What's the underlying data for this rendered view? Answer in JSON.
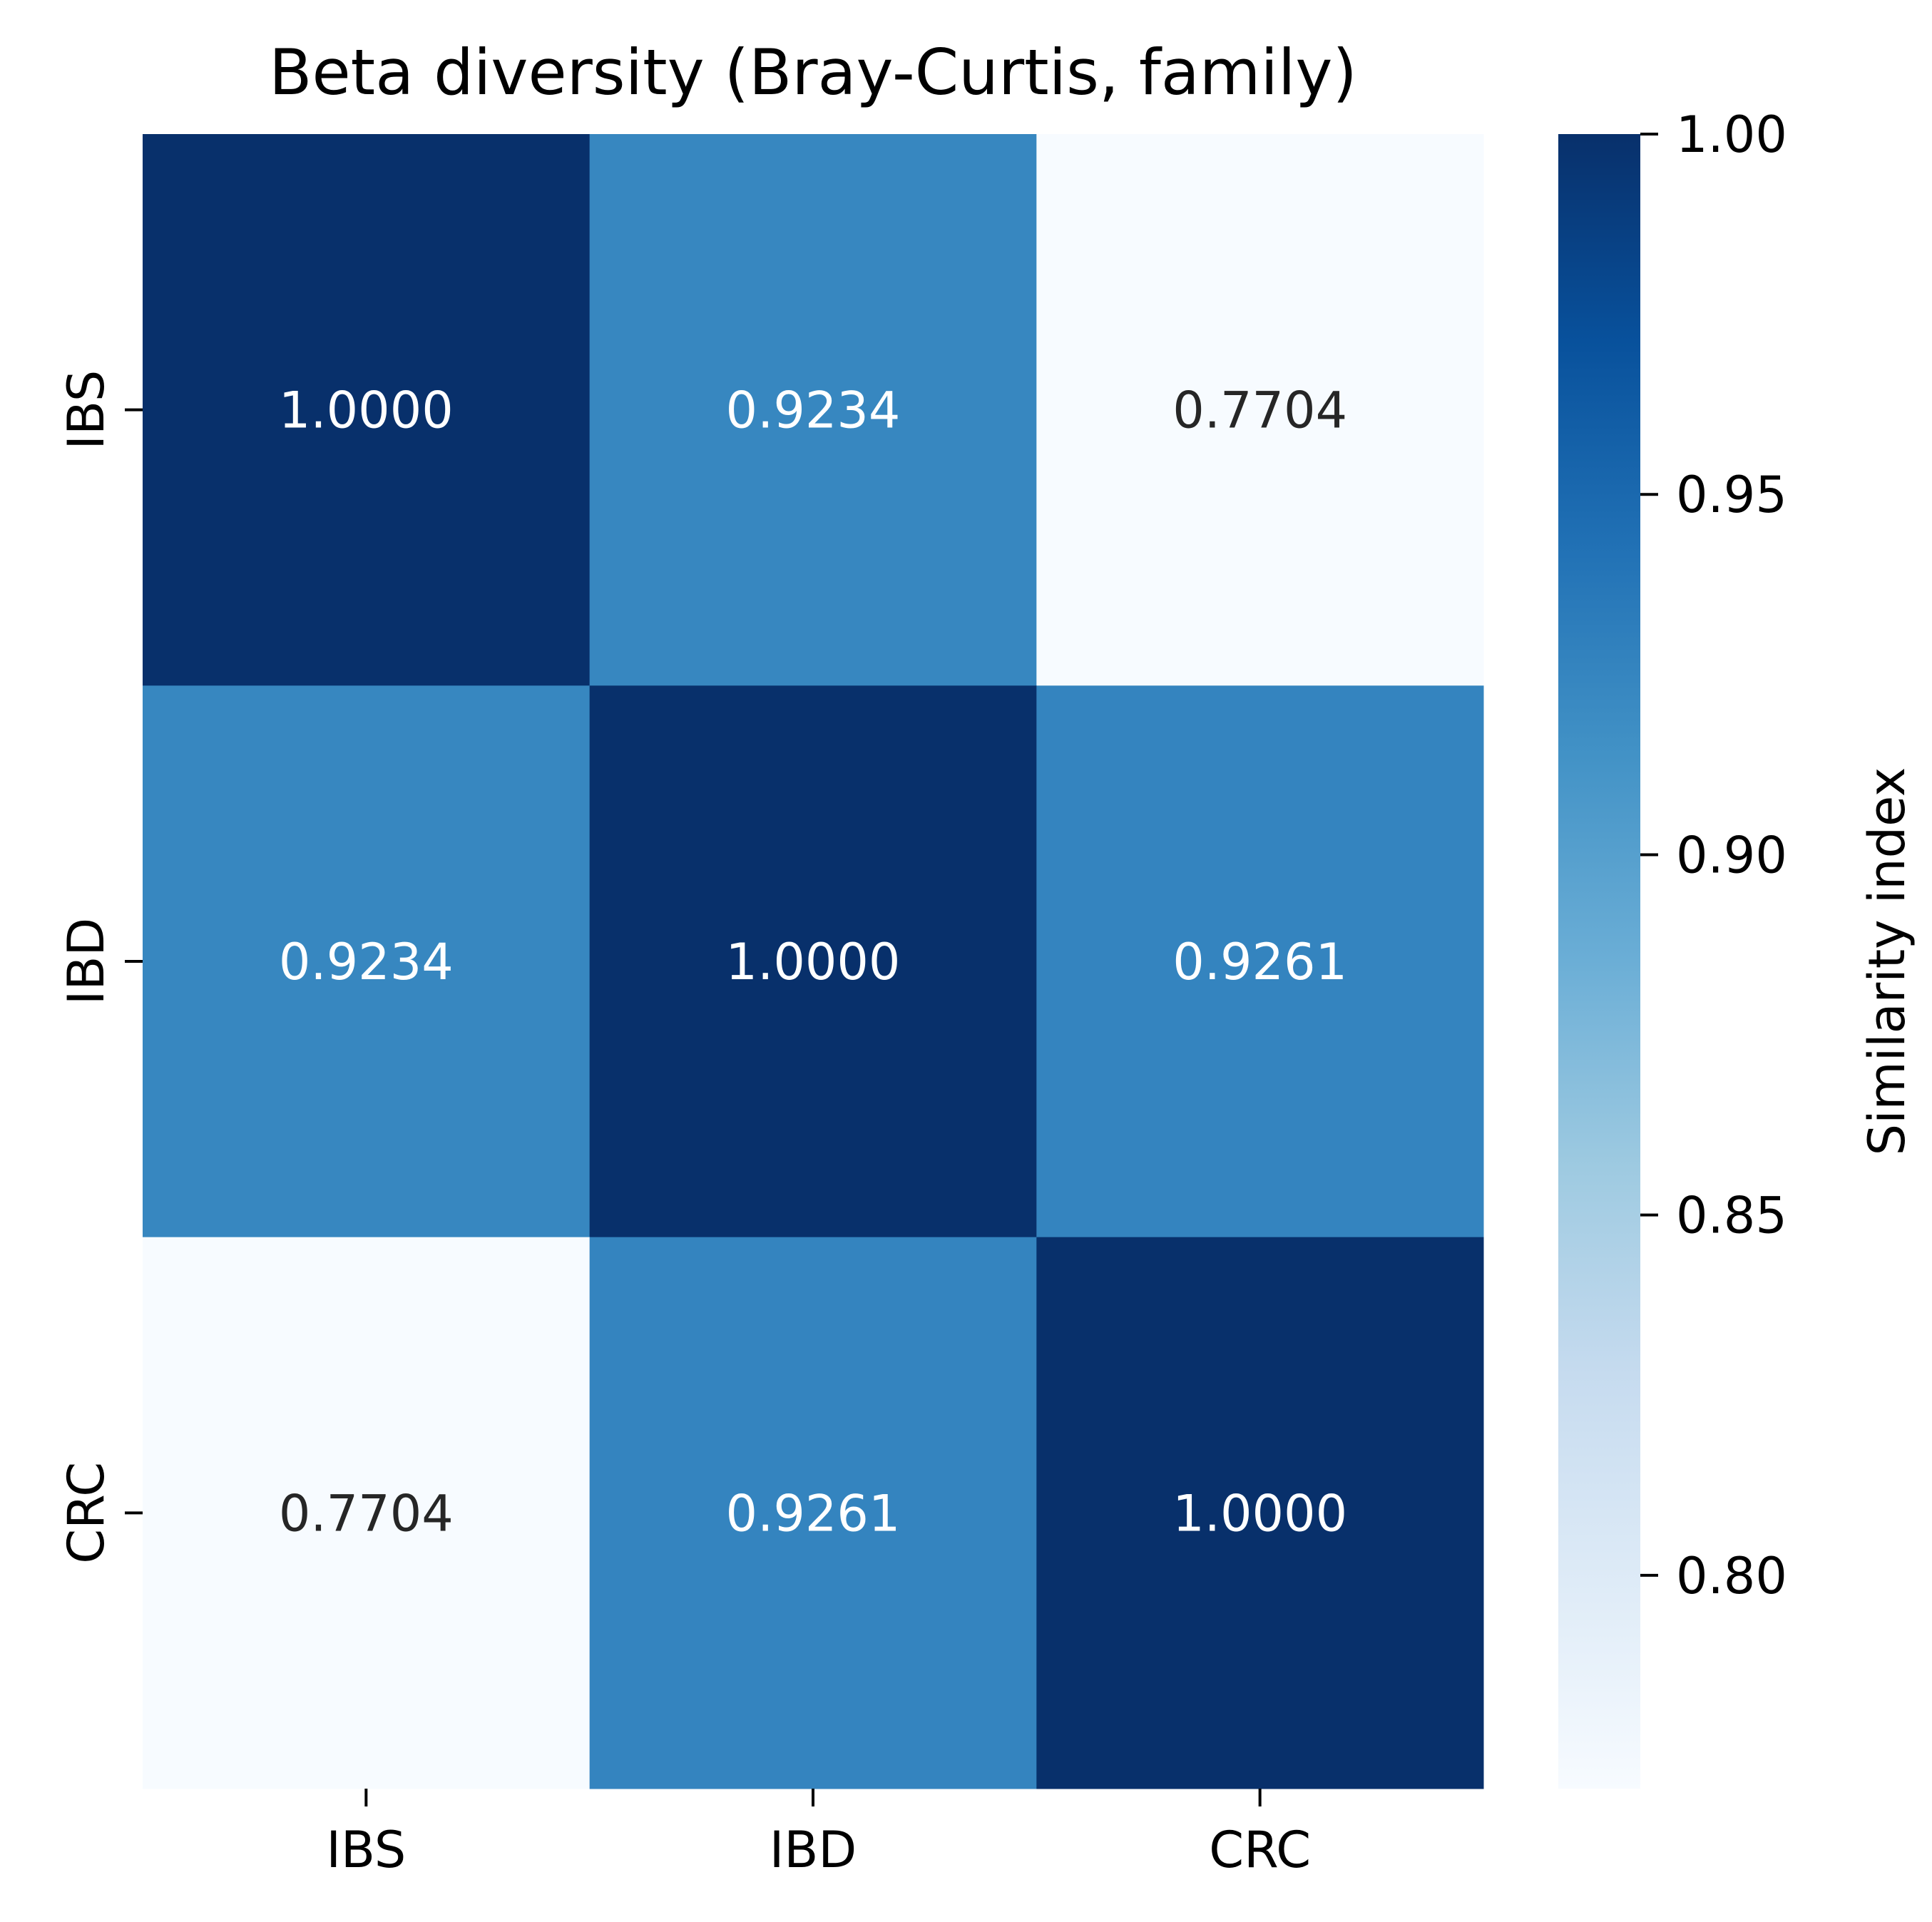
{
  "chart_data": {
    "type": "heatmap",
    "title": "Beta diversity (Bray-Curtis, family)",
    "x_categories": [
      "IBS",
      "IBD",
      "CRC"
    ],
    "y_categories": [
      "IBS",
      "IBD",
      "CRC"
    ],
    "values": [
      [
        1.0,
        0.9234,
        0.7704
      ],
      [
        0.9234,
        1.0,
        0.9261
      ],
      [
        0.7704,
        0.9261,
        1.0
      ]
    ],
    "cell_labels": [
      [
        "1.0000",
        "0.9234",
        "0.7704"
      ],
      [
        "0.9234",
        "1.0000",
        "0.9261"
      ],
      [
        "0.7704",
        "0.9261",
        "1.0000"
      ]
    ],
    "colorbar": {
      "label": "Similarity index",
      "range": [
        0.7704,
        1.0
      ],
      "ticks": [
        0.8,
        0.85,
        0.9,
        0.95,
        1.0
      ],
      "tick_labels": [
        "0.80",
        "0.85",
        "0.90",
        "0.95",
        "1.00"
      ],
      "colormap": "Blues"
    },
    "colors": {
      "min": "#f7fbff",
      "mid": "#3484c0",
      "max": "#08306b"
    }
  }
}
